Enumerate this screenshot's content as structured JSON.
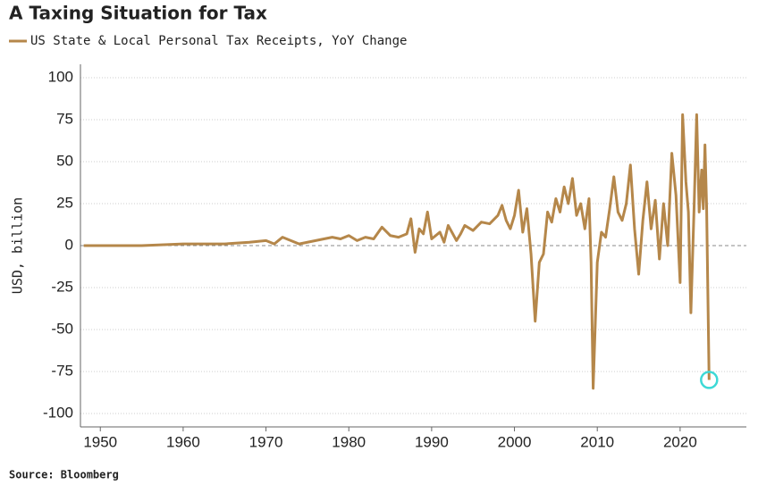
{
  "chart_data": {
    "type": "line",
    "title": "A Taxing Situation for Tax",
    "ylabel": "USD, billion",
    "source": "Source: Bloomberg",
    "series": [
      {
        "name": "US State & Local Personal Tax Receipts, YoY Change",
        "color": "#b5874a",
        "x": [
          1948,
          1955,
          1960,
          1965,
          1968,
          1970,
          1971,
          1972,
          1973,
          1974,
          1976,
          1978,
          1979,
          1980,
          1981,
          1982,
          1983,
          1984,
          1985,
          1986,
          1987,
          1987.5,
          1988,
          1988.5,
          1989,
          1989.5,
          1990,
          1991,
          1991.5,
          1992,
          1993,
          1993.5,
          1994,
          1995,
          1996,
          1997,
          1998,
          1998.5,
          1999,
          1999.5,
          2000,
          2000.5,
          2001,
          2001.5,
          2002,
          2002.5,
          2003,
          2003.5,
          2004,
          2004.5,
          2005,
          2005.5,
          2006,
          2006.5,
          2007,
          2007.5,
          2008,
          2008.5,
          2009,
          2009.25,
          2009.5,
          2010,
          2010.5,
          2011,
          2011.5,
          2012,
          2012.5,
          2013,
          2013.5,
          2014,
          2014.5,
          2015,
          2015.5,
          2016,
          2016.5,
          2017,
          2017.5,
          2018,
          2018.5,
          2019,
          2019.5,
          2020,
          2020.3,
          2020.7,
          2021,
          2021.3,
          2021.7,
          2022,
          2022.3,
          2022.6,
          2022.8,
          2023,
          2023.2,
          2023.5
        ],
        "values": [
          0,
          0,
          1,
          1,
          2,
          3,
          1,
          5,
          3,
          1,
          3,
          5,
          4,
          6,
          3,
          5,
          4,
          11,
          6,
          5,
          7,
          16,
          -4,
          10,
          7,
          20,
          4,
          8,
          2,
          12,
          3,
          7,
          12,
          9,
          14,
          13,
          18,
          24,
          15,
          10,
          18,
          33,
          8,
          22,
          -5,
          -45,
          -10,
          -5,
          20,
          14,
          28,
          20,
          35,
          25,
          40,
          18,
          25,
          10,
          28,
          -10,
          -85,
          -10,
          8,
          5,
          22,
          41,
          20,
          15,
          25,
          48,
          10,
          -17,
          15,
          38,
          10,
          27,
          -8,
          25,
          0,
          55,
          30,
          -22,
          78,
          38,
          20,
          -40,
          25,
          78,
          20,
          45,
          22,
          60,
          23,
          -80
        ]
      }
    ],
    "highlight_color": "#3dd9d6",
    "xlim": [
      1947.6,
      2028
    ],
    "xticks": [
      1950,
      1960,
      1970,
      1980,
      1990,
      2000,
      2010,
      2020
    ],
    "ylim": [
      -108,
      108
    ],
    "yticks": [
      -100,
      -75,
      -50,
      -25,
      0,
      25,
      50,
      75,
      100
    ],
    "grid": true
  }
}
